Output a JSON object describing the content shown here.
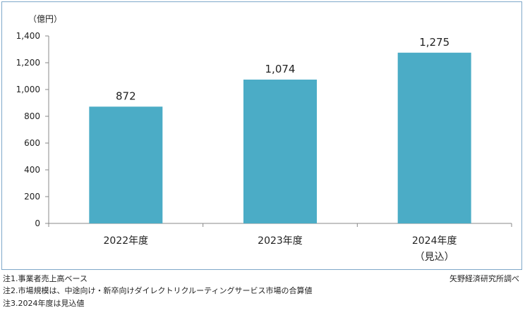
{
  "chart_data": {
    "type": "bar",
    "unit_label": "（億円）",
    "categories": [
      "2022年度",
      "2023年度",
      "2024年度"
    ],
    "category_sublabels": [
      "",
      "",
      "（見込）"
    ],
    "values": [
      872,
      1074,
      1275
    ],
    "value_labels": [
      "872",
      "1,074",
      "1,275"
    ],
    "ylim": [
      0,
      1400
    ],
    "yticks": [
      0,
      200,
      400,
      600,
      800,
      1000,
      1200,
      1400
    ],
    "ytick_labels": [
      "0",
      "200",
      "400",
      "600",
      "800",
      "1,000",
      "1,200",
      "1,400"
    ],
    "bar_color": "#4bacc6",
    "grid": false
  },
  "notes": [
    "注1.事業者売上高ベース",
    "注2.市場規模は、中途向け・新卒向けダイレクトリクルーティングサービス市場の合算値",
    "注3.2024年度は見込値"
  ],
  "source": "矢野経済研究所調べ"
}
